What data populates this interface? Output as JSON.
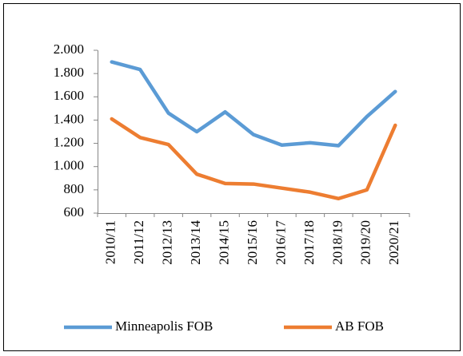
{
  "chart_data": {
    "type": "line",
    "categories": [
      "2010/11",
      "2011/12",
      "2012/13",
      "2013/14",
      "2014/15",
      "2015/16",
      "2016/17",
      "2017/18",
      "2018/19",
      "2019/20",
      "2020/21"
    ],
    "series": [
      {
        "name": "Minneapolis FOB",
        "color": "#5b9bd5",
        "values": [
          1900,
          1835,
          1460,
          1300,
          1470,
          1275,
          1185,
          1205,
          1180,
          1430,
          1645
        ]
      },
      {
        "name": "AB FOB",
        "color": "#ed7d31",
        "values": [
          1410,
          1250,
          1190,
          935,
          855,
          850,
          815,
          780,
          725,
          800,
          1355
        ]
      }
    ],
    "ylim": [
      600,
      2000
    ],
    "yticks": [
      600,
      800,
      {
        "value": 1000,
        "label": "1.000"
      },
      {
        "value": 1200,
        "label": "1.200"
      },
      {
        "value": 1400,
        "label": "1.400"
      },
      {
        "value": 1600,
        "label": "1.600"
      },
      {
        "value": 1800,
        "label": "1.800"
      },
      {
        "value": 2000,
        "label": "2.000"
      }
    ],
    "grid": false,
    "legend": "bottom"
  }
}
